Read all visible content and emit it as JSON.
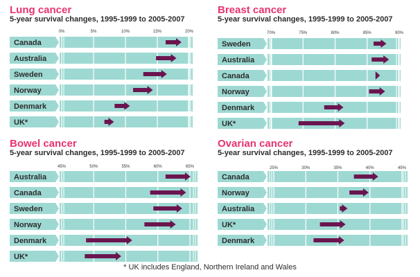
{
  "colors": {
    "title": "#e8336f",
    "track": "#9dd9d2",
    "track_gap": "#ffffff",
    "label_bg": "#9dd9d2",
    "arrow": "#6b1550",
    "text": "#2c2c2c"
  },
  "footnote": "* UK includes England, Northern Ireland and Wales",
  "chart_data": [
    {
      "type": "bar",
      "title": "Lung cancer",
      "subtitle": "5-year survival changes, 1995-1999 to 2005-2007",
      "xlim": [
        0,
        20
      ],
      "ticks": [
        "0%",
        "5%",
        "10%",
        "15%",
        "20%"
      ],
      "tick_values": [
        0,
        5,
        10,
        15,
        20
      ],
      "categories": [
        "Canada",
        "Australia",
        "Sweden",
        "Norway",
        "Denmark",
        "UK*"
      ],
      "series": [
        {
          "values_start": [
            16.3,
            14.8,
            12.8,
            11.2,
            8.3,
            6.7
          ]
        },
        {
          "values_end": [
            18.8,
            18.0,
            16.5,
            14.3,
            10.7,
            8.2
          ]
        }
      ]
    },
    {
      "type": "bar",
      "title": "Breast cancer",
      "subtitle": "5-year survival changes, 1995-1999 to 2005-2007",
      "xlim": [
        70,
        90
      ],
      "ticks": [
        "70%",
        "75%",
        "80%",
        "85%",
        "90%"
      ],
      "tick_values": [
        70,
        75,
        80,
        85,
        90
      ],
      "categories": [
        "Sweden",
        "Australia",
        "Canada",
        "Norway",
        "Denmark",
        "UK*"
      ],
      "series": [
        {
          "values_start": [
            86.0,
            85.7,
            86.3,
            85.3,
            78.3,
            74.3
          ]
        },
        {
          "values_end": [
            88.0,
            88.4,
            87.0,
            87.8,
            81.3,
            81.5
          ]
        }
      ]
    },
    {
      "type": "bar",
      "title": "Bowel cancer",
      "subtitle": "5-year survival changes, 1995-1999 to 2005-2007",
      "xlim": [
        45,
        65
      ],
      "ticks": [
        "45%",
        "50%",
        "55%",
        "60%",
        "65%"
      ],
      "tick_values": [
        45,
        50,
        55,
        60,
        65
      ],
      "categories": [
        "Australia",
        "Canada",
        "Sweden",
        "Norway",
        "Denmark",
        "UK*"
      ],
      "series": [
        {
          "values_start": [
            61.2,
            58.8,
            59.3,
            57.9,
            48.8,
            48.6
          ]
        },
        {
          "values_end": [
            65.1,
            64.4,
            63.8,
            62.8,
            56.0,
            54.3
          ]
        }
      ]
    },
    {
      "type": "bar",
      "title": "Ovarian cancer",
      "subtitle": "5-year survival changes, 1995-1999 to 2005-2007",
      "xlim": [
        25,
        45
      ],
      "ticks": [
        "25%",
        "30%",
        "35%",
        "40%",
        "45%"
      ],
      "tick_values": [
        25,
        30,
        35,
        40,
        45
      ],
      "categories": [
        "Canada",
        "Norway",
        "Australia",
        "UK*",
        "Denmark"
      ],
      "series": [
        {
          "values_start": [
            37.5,
            36.8,
            35.3,
            32.2,
            31.2
          ]
        },
        {
          "values_end": [
            41.3,
            39.8,
            36.5,
            36.2,
            36.0
          ]
        }
      ]
    }
  ]
}
